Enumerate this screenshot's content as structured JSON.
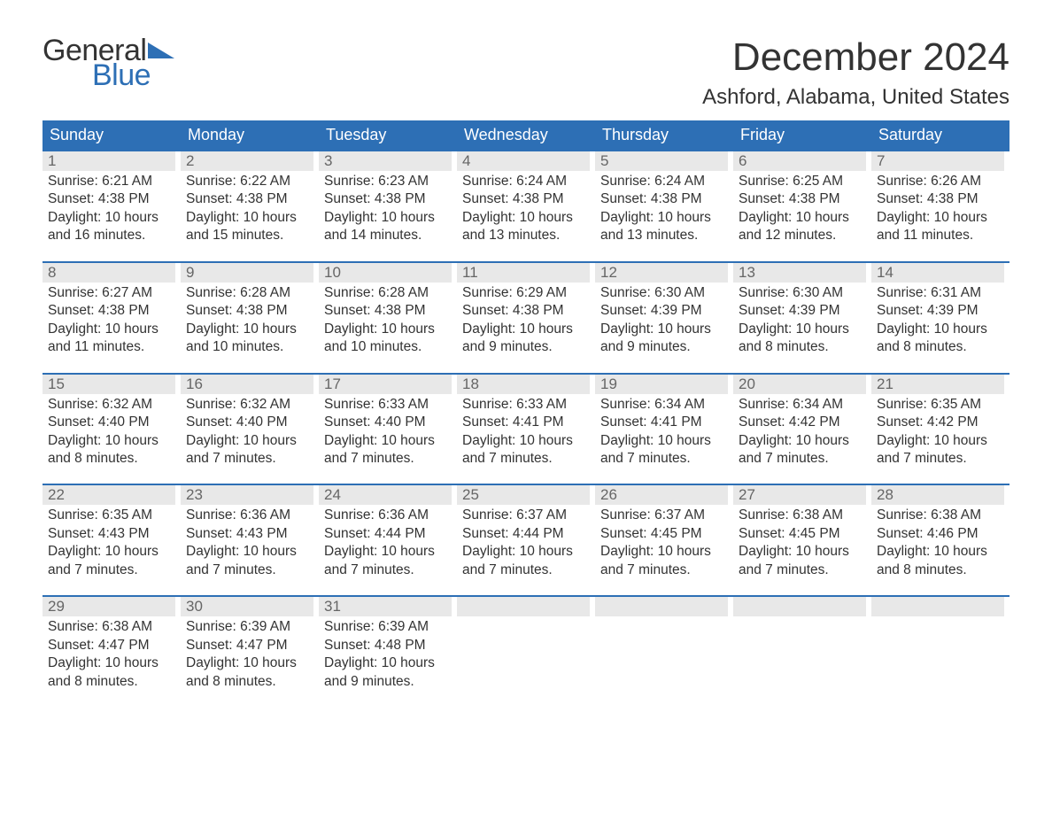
{
  "logo": {
    "text1": "General",
    "text2": "Blue",
    "tri_color": "#2d6fb5",
    "text1_color": "#333333"
  },
  "header": {
    "month_title": "December 2024",
    "location": "Ashford, Alabama, United States"
  },
  "colors": {
    "header_bg": "#2d6fb5",
    "header_text": "#ffffff",
    "daynum_bg": "#e8e8e8",
    "daynum_text": "#666666",
    "body_text": "#333333",
    "page_bg": "#ffffff",
    "week_border": "#2d6fb5"
  },
  "typography": {
    "month_title_size": 44,
    "location_size": 24,
    "weekday_size": 18,
    "daynum_size": 17,
    "body_size": 15.5,
    "logo_size": 34
  },
  "weekdays": [
    "Sunday",
    "Monday",
    "Tuesday",
    "Wednesday",
    "Thursday",
    "Friday",
    "Saturday"
  ],
  "weeks": [
    [
      {
        "n": "1",
        "sunrise": "Sunrise: 6:21 AM",
        "sunset": "Sunset: 4:38 PM",
        "d1": "Daylight: 10 hours",
        "d2": "and 16 minutes."
      },
      {
        "n": "2",
        "sunrise": "Sunrise: 6:22 AM",
        "sunset": "Sunset: 4:38 PM",
        "d1": "Daylight: 10 hours",
        "d2": "and 15 minutes."
      },
      {
        "n": "3",
        "sunrise": "Sunrise: 6:23 AM",
        "sunset": "Sunset: 4:38 PM",
        "d1": "Daylight: 10 hours",
        "d2": "and 14 minutes."
      },
      {
        "n": "4",
        "sunrise": "Sunrise: 6:24 AM",
        "sunset": "Sunset: 4:38 PM",
        "d1": "Daylight: 10 hours",
        "d2": "and 13 minutes."
      },
      {
        "n": "5",
        "sunrise": "Sunrise: 6:24 AM",
        "sunset": "Sunset: 4:38 PM",
        "d1": "Daylight: 10 hours",
        "d2": "and 13 minutes."
      },
      {
        "n": "6",
        "sunrise": "Sunrise: 6:25 AM",
        "sunset": "Sunset: 4:38 PM",
        "d1": "Daylight: 10 hours",
        "d2": "and 12 minutes."
      },
      {
        "n": "7",
        "sunrise": "Sunrise: 6:26 AM",
        "sunset": "Sunset: 4:38 PM",
        "d1": "Daylight: 10 hours",
        "d2": "and 11 minutes."
      }
    ],
    [
      {
        "n": "8",
        "sunrise": "Sunrise: 6:27 AM",
        "sunset": "Sunset: 4:38 PM",
        "d1": "Daylight: 10 hours",
        "d2": "and 11 minutes."
      },
      {
        "n": "9",
        "sunrise": "Sunrise: 6:28 AM",
        "sunset": "Sunset: 4:38 PM",
        "d1": "Daylight: 10 hours",
        "d2": "and 10 minutes."
      },
      {
        "n": "10",
        "sunrise": "Sunrise: 6:28 AM",
        "sunset": "Sunset: 4:38 PM",
        "d1": "Daylight: 10 hours",
        "d2": "and 10 minutes."
      },
      {
        "n": "11",
        "sunrise": "Sunrise: 6:29 AM",
        "sunset": "Sunset: 4:38 PM",
        "d1": "Daylight: 10 hours",
        "d2": "and 9 minutes."
      },
      {
        "n": "12",
        "sunrise": "Sunrise: 6:30 AM",
        "sunset": "Sunset: 4:39 PM",
        "d1": "Daylight: 10 hours",
        "d2": "and 9 minutes."
      },
      {
        "n": "13",
        "sunrise": "Sunrise: 6:30 AM",
        "sunset": "Sunset: 4:39 PM",
        "d1": "Daylight: 10 hours",
        "d2": "and 8 minutes."
      },
      {
        "n": "14",
        "sunrise": "Sunrise: 6:31 AM",
        "sunset": "Sunset: 4:39 PM",
        "d1": "Daylight: 10 hours",
        "d2": "and 8 minutes."
      }
    ],
    [
      {
        "n": "15",
        "sunrise": "Sunrise: 6:32 AM",
        "sunset": "Sunset: 4:40 PM",
        "d1": "Daylight: 10 hours",
        "d2": "and 8 minutes."
      },
      {
        "n": "16",
        "sunrise": "Sunrise: 6:32 AM",
        "sunset": "Sunset: 4:40 PM",
        "d1": "Daylight: 10 hours",
        "d2": "and 7 minutes."
      },
      {
        "n": "17",
        "sunrise": "Sunrise: 6:33 AM",
        "sunset": "Sunset: 4:40 PM",
        "d1": "Daylight: 10 hours",
        "d2": "and 7 minutes."
      },
      {
        "n": "18",
        "sunrise": "Sunrise: 6:33 AM",
        "sunset": "Sunset: 4:41 PM",
        "d1": "Daylight: 10 hours",
        "d2": "and 7 minutes."
      },
      {
        "n": "19",
        "sunrise": "Sunrise: 6:34 AM",
        "sunset": "Sunset: 4:41 PM",
        "d1": "Daylight: 10 hours",
        "d2": "and 7 minutes."
      },
      {
        "n": "20",
        "sunrise": "Sunrise: 6:34 AM",
        "sunset": "Sunset: 4:42 PM",
        "d1": "Daylight: 10 hours",
        "d2": "and 7 minutes."
      },
      {
        "n": "21",
        "sunrise": "Sunrise: 6:35 AM",
        "sunset": "Sunset: 4:42 PM",
        "d1": "Daylight: 10 hours",
        "d2": "and 7 minutes."
      }
    ],
    [
      {
        "n": "22",
        "sunrise": "Sunrise: 6:35 AM",
        "sunset": "Sunset: 4:43 PM",
        "d1": "Daylight: 10 hours",
        "d2": "and 7 minutes."
      },
      {
        "n": "23",
        "sunrise": "Sunrise: 6:36 AM",
        "sunset": "Sunset: 4:43 PM",
        "d1": "Daylight: 10 hours",
        "d2": "and 7 minutes."
      },
      {
        "n": "24",
        "sunrise": "Sunrise: 6:36 AM",
        "sunset": "Sunset: 4:44 PM",
        "d1": "Daylight: 10 hours",
        "d2": "and 7 minutes."
      },
      {
        "n": "25",
        "sunrise": "Sunrise: 6:37 AM",
        "sunset": "Sunset: 4:44 PM",
        "d1": "Daylight: 10 hours",
        "d2": "and 7 minutes."
      },
      {
        "n": "26",
        "sunrise": "Sunrise: 6:37 AM",
        "sunset": "Sunset: 4:45 PM",
        "d1": "Daylight: 10 hours",
        "d2": "and 7 minutes."
      },
      {
        "n": "27",
        "sunrise": "Sunrise: 6:38 AM",
        "sunset": "Sunset: 4:45 PM",
        "d1": "Daylight: 10 hours",
        "d2": "and 7 minutes."
      },
      {
        "n": "28",
        "sunrise": "Sunrise: 6:38 AM",
        "sunset": "Sunset: 4:46 PM",
        "d1": "Daylight: 10 hours",
        "d2": "and 8 minutes."
      }
    ],
    [
      {
        "n": "29",
        "sunrise": "Sunrise: 6:38 AM",
        "sunset": "Sunset: 4:47 PM",
        "d1": "Daylight: 10 hours",
        "d2": "and 8 minutes."
      },
      {
        "n": "30",
        "sunrise": "Sunrise: 6:39 AM",
        "sunset": "Sunset: 4:47 PM",
        "d1": "Daylight: 10 hours",
        "d2": "and 8 minutes."
      },
      {
        "n": "31",
        "sunrise": "Sunrise: 6:39 AM",
        "sunset": "Sunset: 4:48 PM",
        "d1": "Daylight: 10 hours",
        "d2": "and 9 minutes."
      },
      null,
      null,
      null,
      null
    ]
  ]
}
